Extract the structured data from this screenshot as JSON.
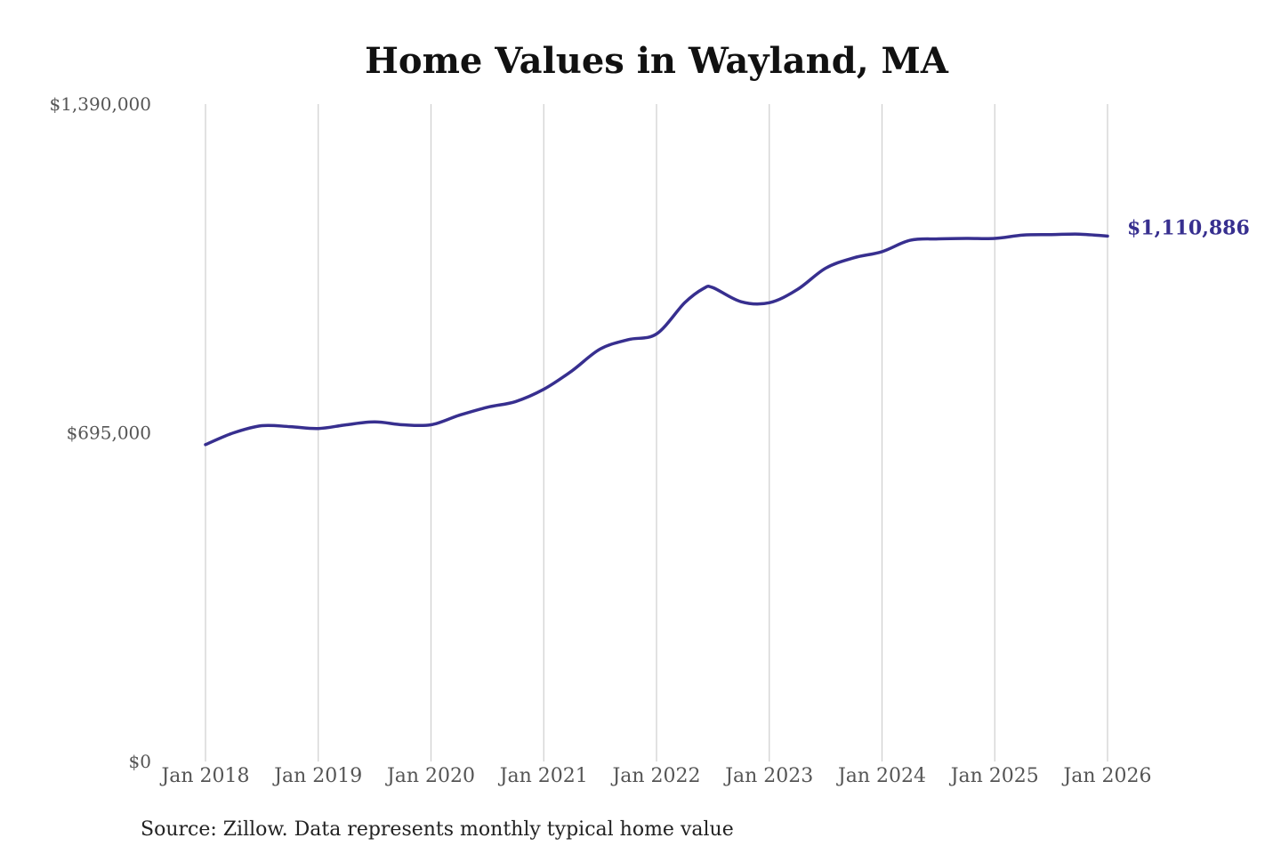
{
  "chart_data": {
    "type": "line",
    "title": "Home Values in Wayland, MA",
    "xlabel": "",
    "ylabel": "",
    "source": "Source: Zillow. Data represents monthly typical home value",
    "ylim": [
      0,
      1390000
    ],
    "y_ticks": [
      0,
      695000,
      1390000
    ],
    "y_tick_labels": [
      "$0",
      "$695,000",
      "$1,390,000"
    ],
    "x_range": [
      "2018-01",
      "2026-01"
    ],
    "x_ticks": [
      "2018-01",
      "2019-01",
      "2020-01",
      "2021-01",
      "2022-01",
      "2023-01",
      "2024-01",
      "2025-01",
      "2026-01"
    ],
    "x_tick_labels": [
      "Jan 2018",
      "Jan 2019",
      "Jan 2020",
      "Jan 2021",
      "Jan 2022",
      "Jan 2023",
      "Jan 2024",
      "Jan 2025",
      "Jan 2026"
    ],
    "grid": "vertical",
    "line_color": "#372f8f",
    "end_label": "$1,110,886",
    "x": [
      "2018-01",
      "2018-04",
      "2018-07",
      "2018-10",
      "2019-01",
      "2019-04",
      "2019-07",
      "2019-10",
      "2020-01",
      "2020-04",
      "2020-07",
      "2020-10",
      "2021-01",
      "2021-04",
      "2021-07",
      "2021-10",
      "2022-01",
      "2022-04",
      "2022-06",
      "2022-07",
      "2022-10",
      "2023-01",
      "2023-04",
      "2023-07",
      "2023-10",
      "2024-01",
      "2024-04",
      "2024-07",
      "2024-10",
      "2025-01",
      "2025-04",
      "2025-07",
      "2025-10",
      "2026-01"
    ],
    "values": [
      670000,
      695000,
      710000,
      708000,
      704000,
      712000,
      718000,
      712000,
      712000,
      732000,
      749000,
      761000,
      787000,
      826000,
      872000,
      892000,
      904000,
      970000,
      1000000,
      1002000,
      972000,
      970000,
      998000,
      1043000,
      1065000,
      1078000,
      1102000,
      1105000,
      1106000,
      1106000,
      1113000,
      1114000,
      1115000,
      1110886
    ]
  }
}
